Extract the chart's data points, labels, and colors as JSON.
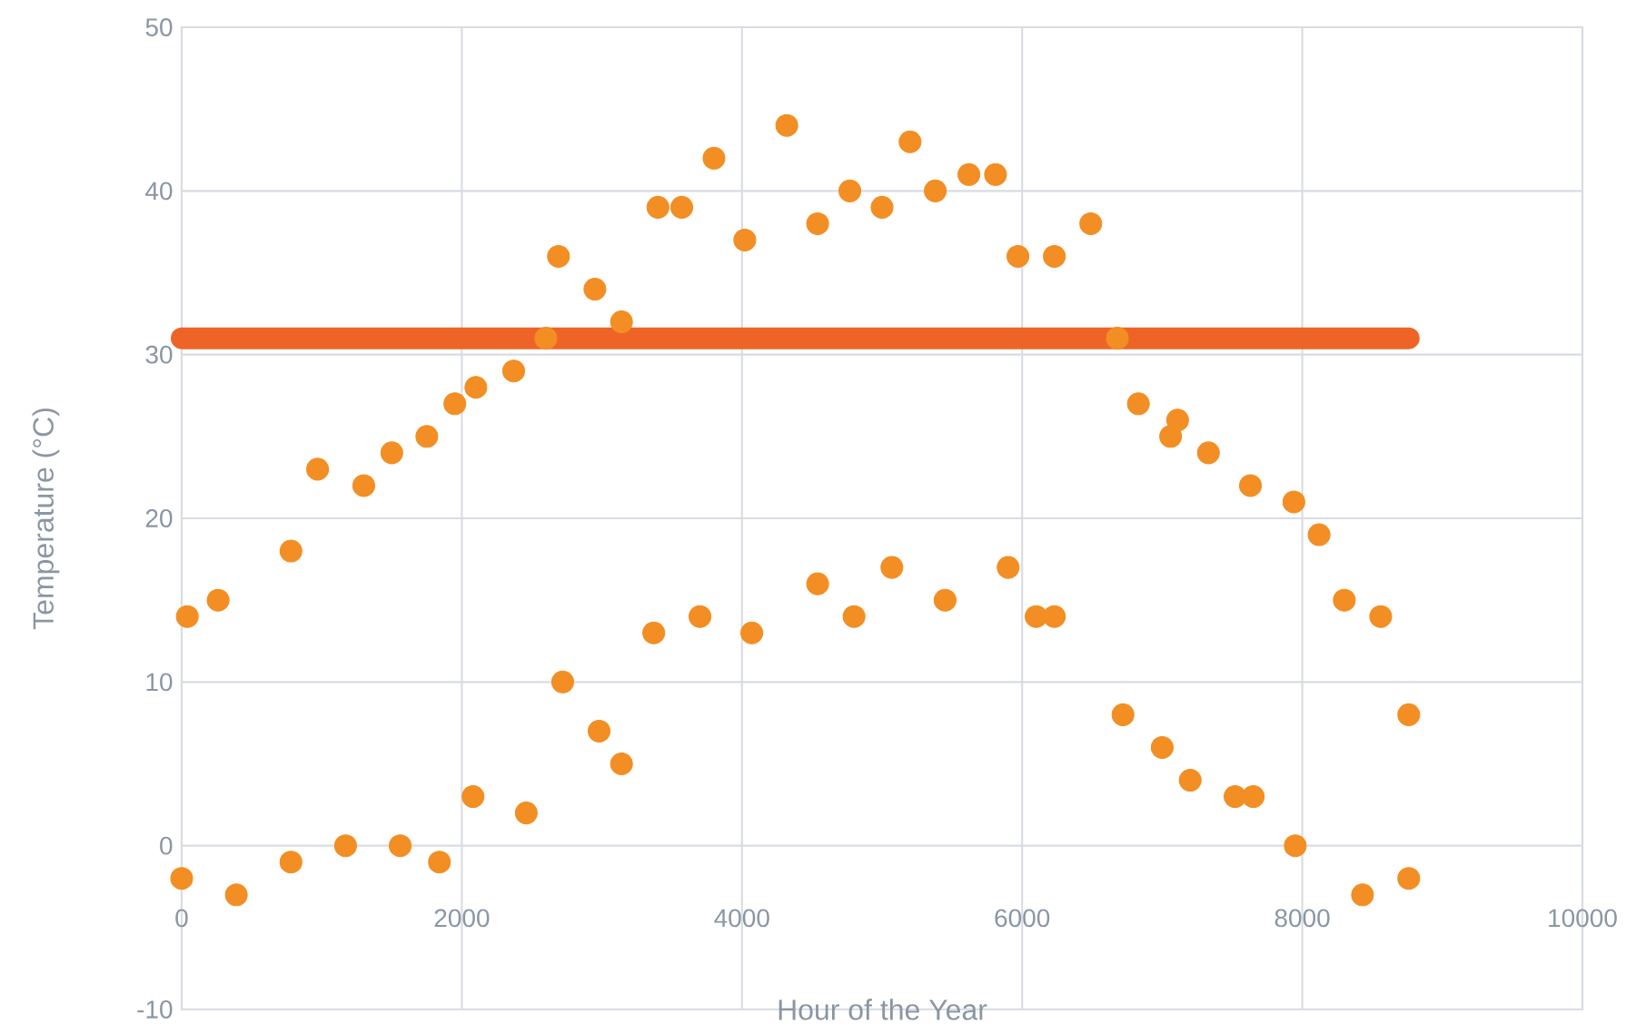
{
  "chart_data": {
    "type": "scatter",
    "xlabel": "Hour of the Year",
    "ylabel": "Temperature (°C)",
    "xlim": [
      0,
      10000
    ],
    "xticks": [
      0,
      2000,
      4000,
      6000,
      8000,
      10000
    ],
    "ylim": [
      -10,
      50
    ],
    "yticks": [
      -10,
      0,
      10,
      20,
      30,
      40,
      50
    ],
    "grid": true,
    "series": [
      {
        "marker": "circle",
        "color": "#f28e23",
        "x": [
          40,
          260,
          780,
          970,
          1300,
          1500,
          1750,
          1950,
          2100,
          2370,
          2600,
          2690,
          2950,
          3140,
          3400,
          3570,
          3800,
          4020,
          4320,
          4540,
          4770,
          5000,
          5200,
          5380,
          5620,
          5810,
          5970,
          6230,
          6490,
          6680,
          6830,
          7060,
          7110,
          7330,
          7630,
          7940,
          8120,
          8300,
          8560,
          8760,
          0,
          390,
          780,
          1170,
          1560,
          1840,
          2080,
          2460,
          2720,
          2980,
          3140,
          3370,
          3700,
          4070,
          4540,
          4800,
          5070,
          5450,
          5900,
          6100,
          6230,
          6720,
          7000,
          7200,
          7520,
          7650,
          7950,
          8430,
          8760
        ],
        "values": [
          14,
          15,
          18,
          23,
          22,
          24,
          25,
          27,
          28,
          29,
          31,
          36,
          34,
          32,
          39,
          39,
          42,
          37,
          44,
          38,
          40,
          39,
          43,
          40,
          41,
          41,
          36,
          36,
          38,
          31,
          27,
          25,
          26,
          24,
          22,
          21,
          19,
          15,
          14,
          8,
          -2,
          -3,
          -1,
          0,
          0,
          -1,
          3,
          2,
          10,
          7,
          5,
          13,
          14,
          13,
          16,
          14,
          17,
          15,
          17,
          14,
          14,
          8,
          6,
          4,
          3,
          3,
          0,
          -3,
          -2
        ]
      },
      {
        "type": "line",
        "marker": "none",
        "color": "#ee6426",
        "x": [
          0,
          8760
        ],
        "values": [
          31,
          31
        ]
      }
    ]
  }
}
